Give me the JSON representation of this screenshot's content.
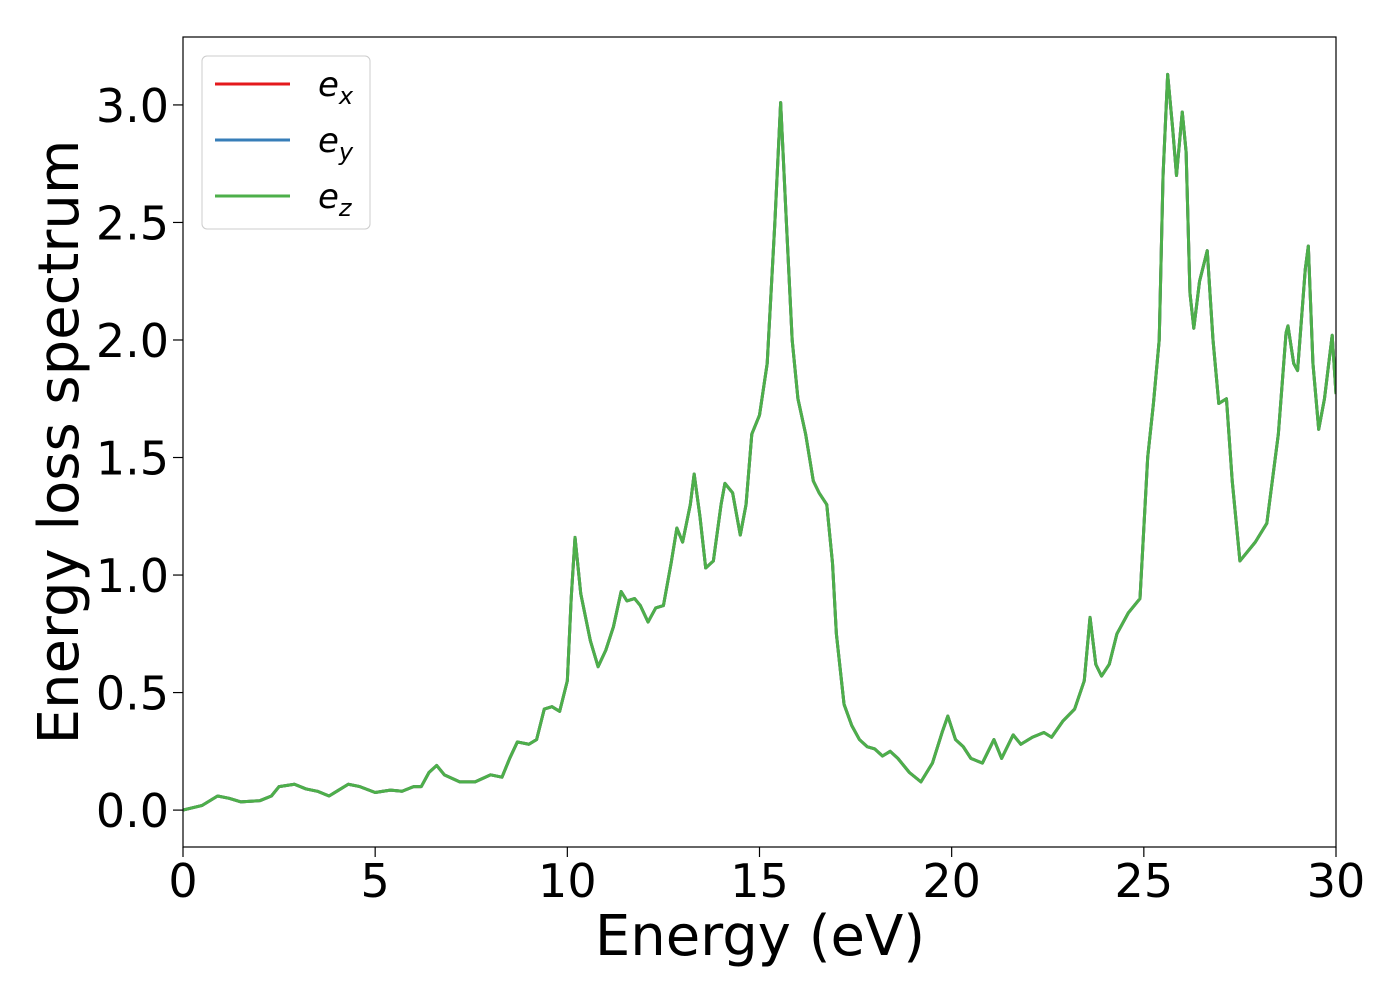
{
  "chart_data": {
    "type": "line",
    "xlabel": "Energy (eV)",
    "ylabel": "Energy loss spectrum",
    "x": [
      0,
      0.5,
      0.9,
      1.2,
      1.5,
      2.0,
      2.3,
      2.5,
      2.9,
      3.2,
      3.5,
      3.8,
      4.0,
      4.3,
      4.6,
      5.0,
      5.4,
      5.7,
      6.0,
      6.2,
      6.4,
      6.6,
      6.8,
      7.2,
      7.4,
      7.6,
      8.0,
      8.3,
      8.5,
      8.7,
      9.0,
      9.2,
      9.4,
      9.6,
      9.8,
      10.0,
      10.1,
      10.2,
      10.35,
      10.6,
      10.8,
      11.0,
      11.2,
      11.4,
      11.55,
      11.75,
      11.9,
      12.1,
      12.3,
      12.5,
      12.7,
      12.85,
      13.0,
      13.2,
      13.3,
      13.45,
      13.6,
      13.8,
      14.0,
      14.1,
      14.3,
      14.5,
      14.65,
      14.8,
      15.0,
      15.2,
      15.4,
      15.55,
      15.7,
      15.85,
      16.0,
      16.2,
      16.4,
      16.55,
      16.75,
      16.9,
      17.0,
      17.2,
      17.4,
      17.6,
      17.8,
      18.0,
      18.2,
      18.4,
      18.6,
      18.9,
      19.2,
      19.5,
      19.75,
      19.9,
      20.1,
      20.3,
      20.5,
      20.8,
      21.1,
      21.3,
      21.6,
      21.8,
      22.1,
      22.4,
      22.6,
      22.9,
      23.2,
      23.45,
      23.6,
      23.75,
      23.9,
      24.1,
      24.3,
      24.6,
      24.9,
      25.1,
      25.25,
      25.4,
      25.5,
      25.62,
      25.75,
      25.85,
      26.0,
      26.1,
      26.2,
      26.3,
      26.45,
      26.65,
      26.8,
      26.95,
      27.15,
      27.3,
      27.5,
      27.7,
      27.9,
      28.2,
      28.5,
      28.7,
      28.75,
      28.9,
      29.0,
      29.2,
      29.28,
      29.4,
      29.55,
      29.7,
      29.9,
      30.0
    ],
    "series": [
      {
        "name": "ex",
        "color": "#e41a1c",
        "values": [
          0,
          0.02,
          0.06,
          0.05,
          0.035,
          0.04,
          0.06,
          0.1,
          0.11,
          0.09,
          0.08,
          0.06,
          0.08,
          0.11,
          0.1,
          0.075,
          0.085,
          0.08,
          0.1,
          0.1,
          0.16,
          0.19,
          0.15,
          0.12,
          0.12,
          0.12,
          0.15,
          0.14,
          0.22,
          0.29,
          0.28,
          0.3,
          0.43,
          0.44,
          0.42,
          0.55,
          0.9,
          1.16,
          0.92,
          0.72,
          0.61,
          0.68,
          0.78,
          0.93,
          0.89,
          0.9,
          0.87,
          0.8,
          0.86,
          0.87,
          1.05,
          1.2,
          1.14,
          1.3,
          1.43,
          1.25,
          1.03,
          1.06,
          1.3,
          1.39,
          1.35,
          1.17,
          1.3,
          1.6,
          1.68,
          1.9,
          2.5,
          3.01,
          2.5,
          2.0,
          1.75,
          1.6,
          1.4,
          1.35,
          1.3,
          1.05,
          0.75,
          0.45,
          0.36,
          0.3,
          0.27,
          0.26,
          0.23,
          0.25,
          0.22,
          0.16,
          0.12,
          0.2,
          0.33,
          0.4,
          0.3,
          0.27,
          0.22,
          0.2,
          0.3,
          0.22,
          0.32,
          0.28,
          0.31,
          0.33,
          0.31,
          0.38,
          0.43,
          0.55,
          0.82,
          0.62,
          0.57,
          0.62,
          0.75,
          0.84,
          0.9,
          1.5,
          1.73,
          2.0,
          2.7,
          3.13,
          2.9,
          2.7,
          2.97,
          2.8,
          2.2,
          2.05,
          2.25,
          2.38,
          2.0,
          1.73,
          1.75,
          1.4,
          1.06,
          1.1,
          1.14,
          1.22,
          1.6,
          2.03,
          2.06,
          1.9,
          1.87,
          2.3,
          2.4,
          1.9,
          1.62,
          1.75,
          2.02,
          1.77
        ]
      },
      {
        "name": "ey",
        "color": "#377eb8",
        "values": [
          0,
          0.02,
          0.06,
          0.05,
          0.035,
          0.04,
          0.06,
          0.1,
          0.11,
          0.09,
          0.08,
          0.06,
          0.08,
          0.11,
          0.1,
          0.075,
          0.085,
          0.08,
          0.1,
          0.1,
          0.16,
          0.19,
          0.15,
          0.12,
          0.12,
          0.12,
          0.15,
          0.14,
          0.22,
          0.29,
          0.28,
          0.3,
          0.43,
          0.44,
          0.42,
          0.55,
          0.9,
          1.16,
          0.92,
          0.72,
          0.61,
          0.68,
          0.78,
          0.93,
          0.89,
          0.9,
          0.87,
          0.8,
          0.86,
          0.87,
          1.05,
          1.2,
          1.14,
          1.3,
          1.43,
          1.25,
          1.03,
          1.06,
          1.3,
          1.39,
          1.35,
          1.17,
          1.3,
          1.6,
          1.68,
          1.9,
          2.5,
          3.01,
          2.5,
          2.0,
          1.75,
          1.6,
          1.4,
          1.35,
          1.3,
          1.05,
          0.75,
          0.45,
          0.36,
          0.3,
          0.27,
          0.26,
          0.23,
          0.25,
          0.22,
          0.16,
          0.12,
          0.2,
          0.33,
          0.4,
          0.3,
          0.27,
          0.22,
          0.2,
          0.3,
          0.22,
          0.32,
          0.28,
          0.31,
          0.33,
          0.31,
          0.38,
          0.43,
          0.55,
          0.82,
          0.62,
          0.57,
          0.62,
          0.75,
          0.84,
          0.9,
          1.5,
          1.73,
          2.0,
          2.7,
          3.13,
          2.9,
          2.7,
          2.97,
          2.8,
          2.2,
          2.05,
          2.25,
          2.38,
          2.0,
          1.73,
          1.75,
          1.4,
          1.06,
          1.1,
          1.14,
          1.22,
          1.6,
          2.03,
          2.06,
          1.9,
          1.87,
          2.3,
          2.4,
          1.9,
          1.62,
          1.75,
          2.02,
          1.77
        ]
      },
      {
        "name": "ez",
        "color": "#4daf4a",
        "values": [
          0,
          0.02,
          0.06,
          0.05,
          0.035,
          0.04,
          0.06,
          0.1,
          0.11,
          0.09,
          0.08,
          0.06,
          0.08,
          0.11,
          0.1,
          0.075,
          0.085,
          0.08,
          0.1,
          0.1,
          0.16,
          0.19,
          0.15,
          0.12,
          0.12,
          0.12,
          0.15,
          0.14,
          0.22,
          0.29,
          0.28,
          0.3,
          0.43,
          0.44,
          0.42,
          0.55,
          0.9,
          1.16,
          0.92,
          0.72,
          0.61,
          0.68,
          0.78,
          0.93,
          0.89,
          0.9,
          0.87,
          0.8,
          0.86,
          0.87,
          1.05,
          1.2,
          1.14,
          1.3,
          1.43,
          1.25,
          1.03,
          1.06,
          1.3,
          1.39,
          1.35,
          1.17,
          1.3,
          1.6,
          1.68,
          1.9,
          2.5,
          3.01,
          2.5,
          2.0,
          1.75,
          1.6,
          1.4,
          1.35,
          1.3,
          1.05,
          0.75,
          0.45,
          0.36,
          0.3,
          0.27,
          0.26,
          0.23,
          0.25,
          0.22,
          0.16,
          0.12,
          0.2,
          0.33,
          0.4,
          0.3,
          0.27,
          0.22,
          0.2,
          0.3,
          0.22,
          0.32,
          0.28,
          0.31,
          0.33,
          0.31,
          0.38,
          0.43,
          0.55,
          0.82,
          0.62,
          0.57,
          0.62,
          0.75,
          0.84,
          0.9,
          1.5,
          1.73,
          2.0,
          2.7,
          3.13,
          2.9,
          2.7,
          2.97,
          2.8,
          2.2,
          2.05,
          2.25,
          2.38,
          2.0,
          1.73,
          1.75,
          1.4,
          1.06,
          1.1,
          1.14,
          1.22,
          1.6,
          2.03,
          2.06,
          1.9,
          1.87,
          2.3,
          2.4,
          1.9,
          1.62,
          1.75,
          2.02,
          1.77
        ]
      }
    ],
    "xlim": [
      0,
      30
    ],
    "xticks": [
      0,
      5,
      10,
      15,
      20,
      25,
      30
    ],
    "ylim": [
      -0.157,
      3.289
    ],
    "yticks": [
      {
        "value": 0,
        "label": "0.0"
      },
      {
        "value": 0.5,
        "label": "0.5"
      },
      {
        "value": 1,
        "label": "1.0"
      },
      {
        "value": 1.5,
        "label": "1.5"
      },
      {
        "value": 2,
        "label": "2.0"
      },
      {
        "value": 2.5,
        "label": "2.5"
      },
      {
        "value": 3,
        "label": "3.0"
      }
    ],
    "grid": false,
    "legend": "upper left"
  }
}
